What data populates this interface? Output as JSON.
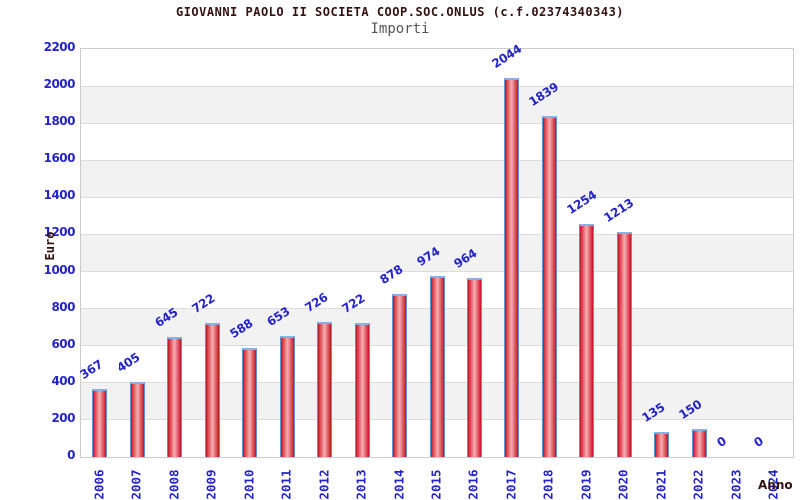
{
  "header": {
    "title": "GIOVANNI PAOLO II SOCIETA COOP.SOC.ONLUS (c.f.02374340343)",
    "subtitle": "Importi"
  },
  "chart_data": {
    "type": "bar",
    "title": "GIOVANNI PAOLO II SOCIETA COOP.SOC.ONLUS (c.f.02374340343)",
    "subtitle": "Importi",
    "xlabel": "Anno",
    "ylabel": "Euro",
    "categories": [
      "2006",
      "2007",
      "2008",
      "2009",
      "2010",
      "2011",
      "2012",
      "2013",
      "2014",
      "2015",
      "2016",
      "2017",
      "2018",
      "2019",
      "2020",
      "2021",
      "2022",
      "2023",
      "2024"
    ],
    "values": [
      367,
      405,
      645,
      722,
      588,
      653,
      726,
      722,
      878,
      974,
      964,
      2044,
      1839,
      1254,
      1213,
      135,
      150,
      0,
      0
    ],
    "ylim": [
      0,
      2200
    ],
    "ytick_step": 200,
    "grid": "horizontal alternating bands",
    "legend": "none",
    "colors": {
      "title_text": "#331111",
      "subtitle_text": "#555555",
      "axis_label_text": "#331111",
      "tick_text": "#2424c8",
      "value_text": "#2424c8",
      "band_white": "#ffffff",
      "band_gray": "#f2f2f2",
      "grid_line": "#dddddd",
      "plot_border": "#cccccc",
      "bar_outline": "#5c92d8",
      "bar_top_cap": "#85b2e6",
      "bar_edge": "#bf1524",
      "bar_mid": "#da3d49",
      "bar_center": "#f3b0b3"
    }
  }
}
